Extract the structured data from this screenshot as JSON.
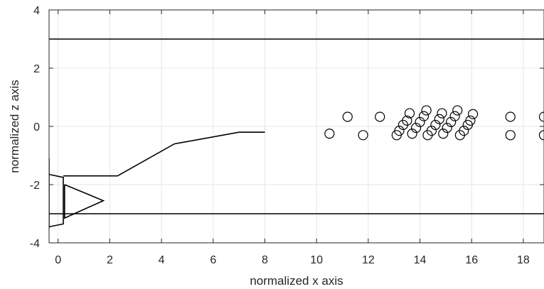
{
  "chart_data": {
    "type": "line",
    "title": "",
    "xlabel": "normalized x axis",
    "ylabel": "normalized z axis",
    "xlim": [
      -0.35,
      18.8
    ],
    "ylim": [
      -4,
      4
    ],
    "xticks": [
      0,
      2,
      4,
      6,
      8,
      10,
      12,
      14,
      16,
      18
    ],
    "yticks": [
      -4,
      -2,
      0,
      2,
      4
    ],
    "grid": true,
    "colors": {
      "lines": "#000000",
      "grid": "#e6e6e6",
      "axes": "#262626"
    },
    "lines": [
      {
        "x": [
          -0.35,
          18.8
        ],
        "y": [
          3,
          3
        ]
      },
      {
        "x": [
          -0.35,
          18.8
        ],
        "y": [
          -3,
          -3
        ]
      },
      {
        "x": [
          0.2,
          2.3,
          4.5,
          7.0,
          8.0
        ],
        "y": [
          -1.7,
          -1.7,
          -0.6,
          -0.2,
          -0.2
        ]
      },
      {
        "x": [
          -0.35,
          0.2,
          0.2,
          -0.35
        ],
        "y": [
          -1.65,
          -1.75,
          -3.35,
          -3.45
        ]
      },
      {
        "x": [
          0.25,
          1.75,
          0.25,
          0.25
        ],
        "y": [
          -2.0,
          -2.55,
          -3.15,
          -2.0
        ]
      },
      {
        "x": [
          -0.35,
          -0.35
        ],
        "y": [
          -1.1,
          -3.5
        ]
      }
    ],
    "bubbles": {
      "x": [
        10.5,
        11.2,
        11.8,
        12.45,
        13.1,
        13.2,
        13.35,
        13.5,
        13.6,
        13.7,
        13.85,
        14.0,
        14.15,
        14.25,
        14.3,
        14.45,
        14.6,
        14.75,
        14.85,
        14.9,
        15.05,
        15.2,
        15.35,
        15.45,
        15.55,
        15.7,
        15.85,
        15.95,
        16.05,
        17.5,
        17.5,
        18.8,
        18.8
      ],
      "y": [
        -0.25,
        0.33,
        -0.3,
        0.33,
        -0.3,
        -0.15,
        0.05,
        0.2,
        0.45,
        -0.25,
        -0.05,
        0.15,
        0.35,
        0.55,
        -0.3,
        -0.15,
        0.05,
        0.25,
        0.45,
        -0.25,
        -0.05,
        0.15,
        0.35,
        0.55,
        -0.3,
        -0.15,
        0.05,
        0.2,
        0.42,
        0.33,
        -0.3,
        0.33,
        -0.3
      ]
    }
  }
}
